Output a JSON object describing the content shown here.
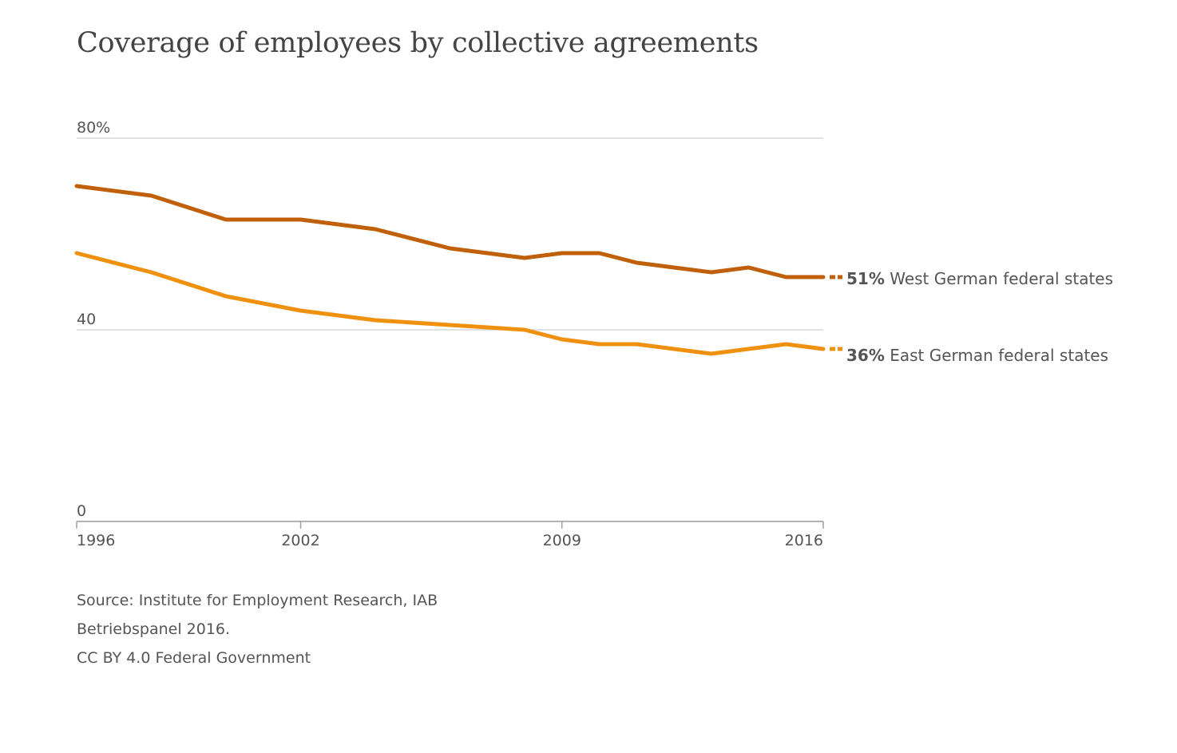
{
  "title": "Coverage of employees by collective agreements",
  "source_lines": [
    "Source: Institute for Employment Research, IAB",
    "Betriebspanel 2016.",
    "CC BY 4.0 Federal Government"
  ],
  "chart_data": {
    "type": "line",
    "title": "Coverage of employees by collective agreements",
    "xlabel": "",
    "ylabel": "",
    "x": [
      1996,
      1998,
      2000,
      2002,
      2004,
      2006,
      2008,
      2009,
      2010,
      2011,
      2012,
      2013,
      2014,
      2015,
      2016
    ],
    "xlim": [
      1996,
      2016
    ],
    "ylim": [
      0,
      80
    ],
    "x_ticks": [
      {
        "value": 1996,
        "label": "1996"
      },
      {
        "value": 2002,
        "label": "2002"
      },
      {
        "value": 2009,
        "label": "2009"
      },
      {
        "value": 2016,
        "label": "2016"
      }
    ],
    "y_ticks": [
      {
        "value": 80,
        "label": "80%"
      },
      {
        "value": 40,
        "label": "40"
      },
      {
        "value": 0,
        "label": "0"
      }
    ],
    "grid": true,
    "legend": "direct labels at right end of lines",
    "series": [
      {
        "name": "West German federal states",
        "end_label_value": "51%",
        "color": "#c0600a",
        "x": [
          1996,
          1998,
          2000,
          2002,
          2004,
          2006,
          2008,
          2009,
          2010,
          2011,
          2012,
          2013,
          2014,
          2015,
          2016
        ],
        "values": [
          70,
          68,
          63,
          63,
          61,
          57,
          55,
          56,
          56,
          54,
          53,
          52,
          53,
          51,
          51
        ]
      },
      {
        "name": "East German federal states",
        "end_label_value": "36%",
        "color": "#f0900f",
        "x": [
          1996,
          1998,
          2000,
          2002,
          2004,
          2006,
          2008,
          2009,
          2010,
          2011,
          2012,
          2013,
          2014,
          2015,
          2016
        ],
        "values": [
          56,
          52,
          47,
          44,
          42,
          41,
          40,
          38,
          37,
          37,
          36,
          35,
          36,
          37,
          36
        ]
      }
    ]
  }
}
